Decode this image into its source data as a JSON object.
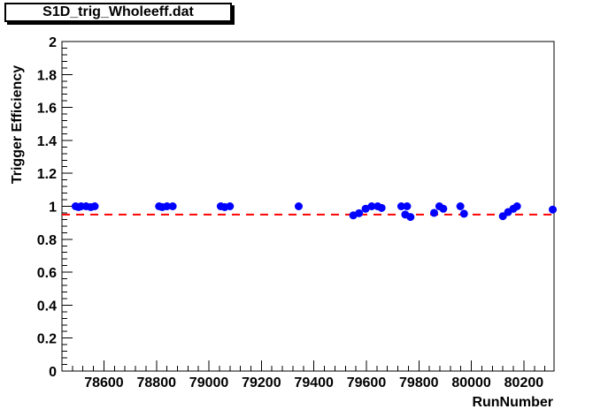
{
  "window": {
    "background": "#ffffff"
  },
  "title_box": {
    "text": "S1D_trig_Wholeeff.dat"
  },
  "chart_data": {
    "type": "scatter",
    "title": "S1D_trig_Wholeeff.dat",
    "xlabel": "RunNumber",
    "ylabel": "Trigger Efficiency",
    "xlim": [
      78440,
      80315
    ],
    "ylim": [
      0,
      2
    ],
    "x_major_ticks": [
      78600,
      78800,
      79000,
      79200,
      79400,
      79600,
      79800,
      80000,
      80200
    ],
    "x_tick_labels": [
      "78600",
      "78800",
      "79000",
      "79200",
      "79400",
      "79600",
      "79800",
      "80000",
      "80200"
    ],
    "x_minor_step": 40,
    "y_major_ticks": [
      0,
      0.2,
      0.4,
      0.6,
      0.8,
      1,
      1.2,
      1.4,
      1.6,
      1.8,
      2
    ],
    "y_tick_labels": [
      "0",
      "0.2",
      "0.4",
      "0.6",
      "0.8",
      "1",
      "1.2",
      "1.4",
      "1.6",
      "1.8",
      "2"
    ],
    "y_minor_step": 0.04,
    "grid": false,
    "legend": "none",
    "marker": {
      "shape": "circle",
      "color": "#0000ff",
      "radius": 4.5
    },
    "reference_line": {
      "y": 0.95,
      "color": "#ff0000",
      "style": "dashed",
      "width": 2
    },
    "points": [
      [
        78492,
        1.0
      ],
      [
        78503,
        0.995
      ],
      [
        78513,
        1.0
      ],
      [
        78532,
        1.0
      ],
      [
        78550,
        0.995
      ],
      [
        78565,
        1.0
      ],
      [
        78810,
        1.0
      ],
      [
        78822,
        0.995
      ],
      [
        78840,
        1.0
      ],
      [
        78862,
        1.0
      ],
      [
        79045,
        1.0
      ],
      [
        79060,
        0.995
      ],
      [
        79080,
        1.0
      ],
      [
        79342,
        1.0
      ],
      [
        79550,
        0.945
      ],
      [
        79572,
        0.958
      ],
      [
        79597,
        0.985
      ],
      [
        79620,
        1.0
      ],
      [
        79643,
        1.0
      ],
      [
        79658,
        0.99
      ],
      [
        79733,
        1.0
      ],
      [
        79748,
        0.95
      ],
      [
        79755,
        1.0
      ],
      [
        79768,
        0.935
      ],
      [
        79858,
        0.96
      ],
      [
        79878,
        1.0
      ],
      [
        79893,
        0.985
      ],
      [
        79958,
        1.0
      ],
      [
        79972,
        0.955
      ],
      [
        80120,
        0.94
      ],
      [
        80140,
        0.965
      ],
      [
        80160,
        0.985
      ],
      [
        80174,
        1.0
      ],
      [
        80310,
        0.98
      ]
    ]
  }
}
